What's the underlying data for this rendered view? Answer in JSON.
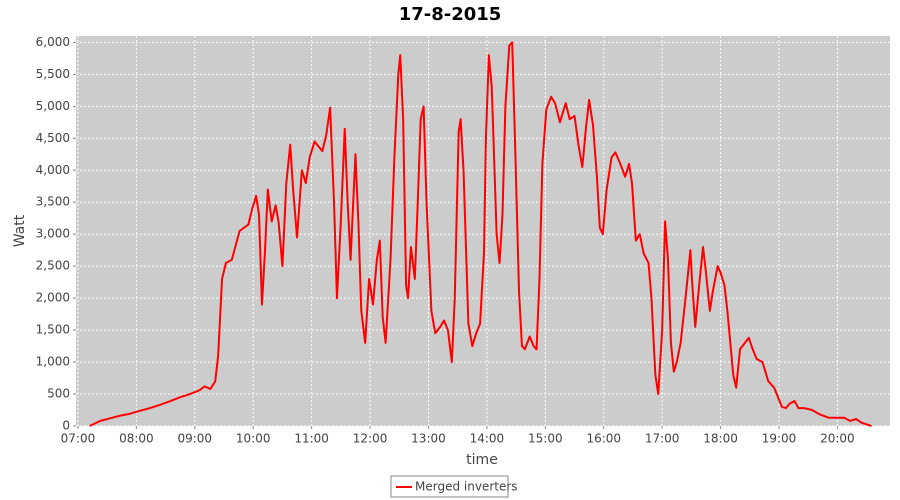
{
  "chart_data": {
    "type": "line",
    "title": "17-8-2015",
    "x_label": "time",
    "y_label": "Watt",
    "x": [
      "07:12",
      "07:23",
      "07:33",
      "07:43",
      "07:53",
      "08:04",
      "08:14",
      "08:24",
      "08:35",
      "08:45",
      "08:55",
      "09:05",
      "09:10",
      "09:16",
      "09:21",
      "09:24",
      "09:28",
      "09:32",
      "09:38",
      "09:46",
      "09:55",
      "09:59",
      "10:03",
      "10:06",
      "10:09",
      "10:12",
      "10:15",
      "10:19",
      "10:23",
      "10:26",
      "10:30",
      "10:34",
      "10:38",
      "10:41",
      "10:45",
      "10:50",
      "10:54",
      "10:58",
      "11:03",
      "11:11",
      "11:15",
      "11:19",
      "11:23",
      "11:26",
      "11:30",
      "11:34",
      "11:37",
      "11:40",
      "11:45",
      "11:48",
      "11:51",
      "11:55",
      "11:59",
      "12:03",
      "12:07",
      "12:10",
      "12:13",
      "12:16",
      "12:21",
      "12:25",
      "12:29",
      "12:31",
      "12:34",
      "12:37",
      "12:39",
      "12:42",
      "12:46",
      "12:49",
      "12:52",
      "12:55",
      "12:58",
      "13:03",
      "13:07",
      "13:12",
      "13:16",
      "13:20",
      "13:24",
      "13:27",
      "13:31",
      "13:33",
      "13:36",
      "13:41",
      "13:45",
      "13:49",
      "13:53",
      "13:57",
      "13:59",
      "14:02",
      "14:05",
      "14:10",
      "14:13",
      "14:16",
      "14:19",
      "14:23",
      "14:26",
      "14:29",
      "14:33",
      "14:36",
      "14:39",
      "14:44",
      "14:48",
      "14:51",
      "14:54",
      "14:57",
      "15:01",
      "15:06",
      "15:10",
      "15:15",
      "15:21",
      "15:25",
      "15:30",
      "15:34",
      "15:38",
      "15:42",
      "15:45",
      "15:49",
      "15:53",
      "15:56",
      "15:59",
      "16:03",
      "16:08",
      "16:12",
      "16:17",
      "16:22",
      "16:26",
      "16:29",
      "16:33",
      "16:37",
      "16:41",
      "16:46",
      "16:49",
      "16:53",
      "16:56",
      "17:00",
      "17:03",
      "17:06",
      "17:09",
      "17:12",
      "17:15",
      "17:19",
      "17:24",
      "17:29",
      "17:31",
      "17:34",
      "17:38",
      "17:42",
      "17:45",
      "17:49",
      "17:52",
      "17:57",
      "18:00",
      "18:04",
      "18:07",
      "18:10",
      "18:13",
      "18:16",
      "18:20",
      "18:25",
      "18:29",
      "18:33",
      "18:37",
      "18:43",
      "18:49",
      "18:55",
      "18:59",
      "19:03",
      "19:07",
      "19:11",
      "19:16",
      "19:20",
      "19:26",
      "19:34",
      "19:42",
      "19:51",
      "19:59",
      "20:07",
      "20:13",
      "20:19",
      "20:25",
      "20:31",
      "20:35"
    ],
    "series": [
      {
        "name": "Merged inverters",
        "color": "#ff0000",
        "values": [
          0,
          80,
          120,
          160,
          190,
          240,
          280,
          330,
          390,
          450,
          500,
          560,
          620,
          580,
          700,
          1100,
          2300,
          2550,
          2600,
          3050,
          3150,
          3400,
          3600,
          3300,
          1900,
          2700,
          3700,
          3200,
          3450,
          3200,
          2500,
          3800,
          4400,
          3700,
          2950,
          4000,
          3800,
          4200,
          4450,
          4300,
          4550,
          4980,
          3500,
          2000,
          3200,
          4650,
          3500,
          2600,
          4250,
          3200,
          1800,
          1300,
          2300,
          1900,
          2600,
          2900,
          1700,
          1300,
          2600,
          4200,
          5500,
          5800,
          4800,
          2200,
          2000,
          2800,
          2300,
          3500,
          4800,
          5000,
          3500,
          1800,
          1450,
          1550,
          1650,
          1500,
          1000,
          2000,
          4600,
          4800,
          4000,
          1600,
          1250,
          1450,
          1600,
          2700,
          4500,
          5800,
          5300,
          3000,
          2550,
          3300,
          5000,
          5950,
          6000,
          4400,
          2100,
          1250,
          1200,
          1400,
          1250,
          1200,
          2300,
          4100,
          4950,
          5150,
          5050,
          4750,
          5050,
          4800,
          4850,
          4400,
          4050,
          4700,
          5100,
          4700,
          3900,
          3100,
          3000,
          3700,
          4200,
          4280,
          4100,
          3900,
          4100,
          3800,
          2900,
          3000,
          2700,
          2550,
          2000,
          800,
          500,
          1500,
          3200,
          2600,
          1300,
          850,
          1000,
          1300,
          2000,
          2750,
          2200,
          1550,
          2200,
          2800,
          2400,
          1800,
          2100,
          2500,
          2400,
          2200,
          1800,
          1300,
          800,
          600,
          1200,
          1300,
          1380,
          1200,
          1050,
          1000,
          700,
          600,
          450,
          300,
          280,
          350,
          390,
          280,
          280,
          250,
          180,
          130,
          130,
          130,
          80,
          110,
          50,
          20,
          0
        ]
      }
    ],
    "xlim": [
      "06:58",
      "20:54"
    ],
    "xticks": [
      "07:00",
      "08:00",
      "09:00",
      "10:00",
      "11:00",
      "12:00",
      "13:00",
      "14:00",
      "15:00",
      "16:00",
      "17:00",
      "18:00",
      "19:00",
      "20:00"
    ],
    "ylim": [
      0,
      6100
    ],
    "yticks": [
      0,
      500,
      {
        "value": 1000,
        "label": "1,000"
      },
      {
        "value": 1500,
        "label": "1,500"
      },
      {
        "value": 2000,
        "label": "2,000"
      },
      {
        "value": 2500,
        "label": "2,500"
      },
      {
        "value": 3000,
        "label": "3,000"
      },
      {
        "value": 3500,
        "label": "3,500"
      },
      {
        "value": 4000,
        "label": "4,000"
      },
      {
        "value": 4500,
        "label": "4,500"
      },
      {
        "value": 5000,
        "label": "5,000"
      },
      {
        "value": 5500,
        "label": "5,500"
      },
      {
        "value": 6000,
        "label": "6,000"
      }
    ],
    "grid": true
  }
}
